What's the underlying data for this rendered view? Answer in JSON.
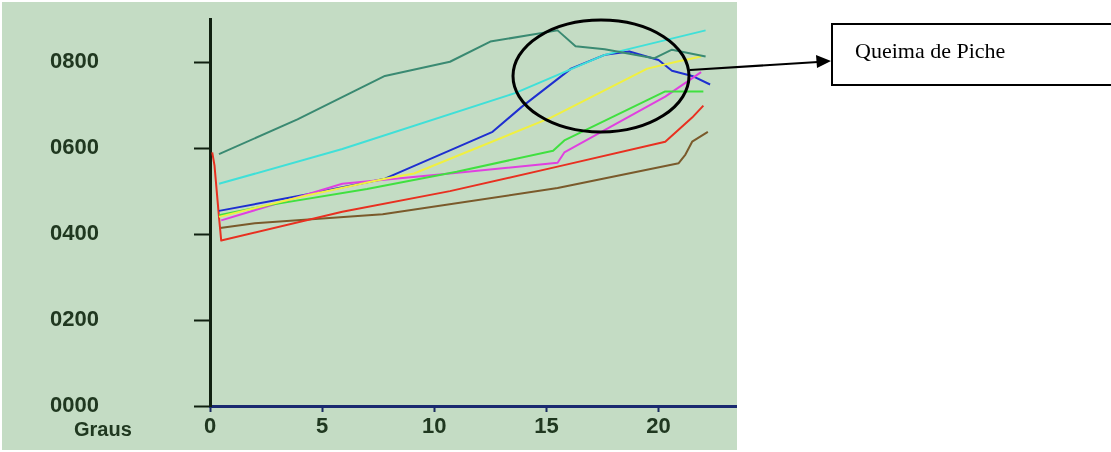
{
  "chart_data": {
    "type": "line",
    "xlabel": "Graus",
    "annotations": [
      "Queima de Piche"
    ],
    "xlim": [
      0,
      23.5
    ],
    "xticks": [
      0,
      5,
      10,
      15,
      20
    ],
    "ylim": [
      0,
      900
    ],
    "yticks": [
      {
        "value": 0,
        "label": "0000"
      },
      {
        "value": 200,
        "label": "0200"
      },
      {
        "value": 400,
        "label": "0400"
      },
      {
        "value": 600,
        "label": "0600"
      },
      {
        "value": 800,
        "label": "0800"
      }
    ],
    "grid": false,
    "series": [
      {
        "color": "#3a8a72",
        "x": [
          0.4,
          3.9,
          7.8,
          10.7,
          12.5,
          15.5,
          16.3,
          17.6,
          19.8,
          20.6,
          22.1
        ],
        "values": [
          586,
          667,
          768,
          801,
          848,
          874,
          837,
          830,
          809,
          829,
          813
        ]
      },
      {
        "color": "#40e0d8",
        "x": [
          0.4,
          5.9,
          13.6,
          17.6,
          22.1
        ],
        "values": [
          517,
          598,
          728,
          817,
          874
        ]
      },
      {
        "color": "#f0f040",
        "x": [
          0.4,
          4.3,
          7.8,
          9.1,
          15.2,
          19.5,
          20.8,
          21.9
        ],
        "values": [
          440,
          490,
          529,
          541,
          671,
          785,
          801,
          813
        ]
      },
      {
        "color": "#40e040",
        "x": [
          0.4,
          2.7,
          7,
          11,
          15.3,
          15.8,
          20.3,
          22
        ],
        "values": [
          444,
          468,
          505,
          545,
          594,
          618,
          732,
          732
        ]
      },
      {
        "color": "#e040e0",
        "x": [
          0.5,
          5.9,
          10.7,
          15.5,
          15.8,
          20.3,
          21.9
        ],
        "values": [
          432,
          517,
          541,
          566,
          590,
          720,
          777
        ]
      },
      {
        "color": "#1e2fd0",
        "x": [
          0.4,
          4.3,
          7.8,
          12.6,
          13.9,
          16.1,
          17.6,
          18.7,
          20,
          20.6,
          21.5,
          22.3
        ],
        "values": [
          454,
          492,
          529,
          638,
          696,
          785,
          817,
          825,
          805,
          780,
          768,
          748
        ]
      },
      {
        "color": "#e83020",
        "x": [
          0.1,
          0.2,
          0.4,
          0.5,
          5.9,
          10.7,
          15.5,
          20.3,
          21.5,
          22
        ],
        "values": [
          590,
          560,
          440,
          385,
          452,
          500,
          557,
          615,
          671,
          699
        ]
      },
      {
        "color": "#7a5a2b",
        "x": [
          0.45,
          2,
          7.7,
          15.5,
          20.9,
          21.2,
          21.5,
          22.2
        ],
        "values": [
          414,
          425,
          446,
          507,
          565,
          585,
          615,
          638
        ]
      }
    ]
  }
}
